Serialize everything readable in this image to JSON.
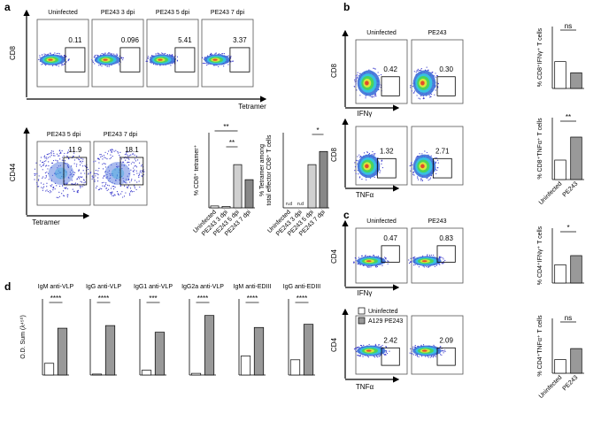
{
  "panel_labels": [
    "a",
    "b",
    "c",
    "d"
  ],
  "flow_panels": [
    {
      "y_axis": "CD8",
      "x_axis": "Tetramer",
      "plots": [
        {
          "title": "Uninfected",
          "gate": "0.11"
        },
        {
          "title": "PE243 3 dpi",
          "gate": "0.096"
        },
        {
          "title": "PE243 5 dpi",
          "gate": "5.41"
        },
        {
          "title": "PE243 7 dpi",
          "gate": "3.37"
        }
      ]
    },
    {
      "y_axis": "CD44",
      "x_axis": "Tetramer",
      "plots": [
        {
          "title": "PE243 5 dpi",
          "gate": "11.9"
        },
        {
          "title": "PE243 7 dpi",
          "gate": "18.1"
        }
      ]
    },
    {
      "y_axis": "CD8",
      "x_axis": "IFNγ",
      "plots": [
        {
          "title": "Uninfected",
          "gate": "0.42"
        },
        {
          "title": "PE243",
          "gate": "0.30"
        }
      ]
    },
    {
      "y_axis": "CD8",
      "x_axis": "TNFα",
      "plots": [
        {
          "gate": "1.32"
        },
        {
          "gate": "2.71"
        }
      ]
    },
    {
      "y_axis": "CD4",
      "x_axis": "IFNγ",
      "plots": [
        {
          "title": "Uninfected",
          "gate": "0.47"
        },
        {
          "title": "PE243",
          "gate": "0.83"
        }
      ]
    },
    {
      "y_axis": "CD4",
      "x_axis": "TNFα",
      "plots": [
        {
          "gate": "2.42"
        },
        {
          "gate": "2.09"
        }
      ]
    }
  ],
  "chart_data": [
    {
      "type": "bar",
      "ylabel": "% CD8⁺ tetramer⁺",
      "categories": [
        "Uninfected",
        "PE243 3 dpi",
        "PE243 5 dpi",
        "PE243 7 dpi"
      ],
      "values": [
        0.2,
        0.15,
        4.6,
        3.0
      ],
      "colors": [
        "#ffffff",
        "#ffffff",
        "#d0d0d0",
        "#888888"
      ],
      "ylim": [
        0,
        8
      ],
      "significance": [
        "**",
        "**"
      ]
    },
    {
      "type": "bar",
      "ylabel": [
        "% Tetramer among",
        "total effector CD8⁺ T cells"
      ],
      "categories": [
        "Uninfected",
        "PE243 3 dpi",
        "PE243 5 dpi",
        "PE243 7 dpi"
      ],
      "values": [
        null,
        null,
        11.5,
        15
      ],
      "value_labels": [
        "n.d",
        "n.d",
        null,
        null
      ],
      "colors": [
        "#ffffff",
        "#ffffff",
        "#d0d0d0",
        "#888888"
      ],
      "ylim": [
        0,
        20
      ],
      "significance": [
        "*"
      ]
    },
    {
      "type": "bar",
      "ylabel": "% CD8⁺IFNγ⁺ T cells",
      "values": [
        0.65,
        0.38
      ],
      "colors": [
        "#ffffff",
        "#999999"
      ],
      "ylim": [
        0,
        1.5
      ],
      "significance": [
        "ns"
      ]
    },
    {
      "type": "bar",
      "ylabel": "% CD8⁺TNFα⁺ T cells",
      "categories": [
        "Uninfected",
        "PE243"
      ],
      "values": [
        1.1,
        2.4
      ],
      "colors": [
        "#ffffff",
        "#999999"
      ],
      "ylim": [
        0,
        3.5
      ],
      "significance": [
        "**"
      ]
    },
    {
      "type": "bar",
      "ylabel": "% CD4⁺IFNγ⁺ T cells",
      "values": [
        0.5,
        0.75
      ],
      "colors": [
        "#ffffff",
        "#999999"
      ],
      "ylim": [
        0,
        1.5
      ],
      "significance": [
        "*"
      ]
    },
    {
      "type": "bar",
      "ylabel": "% CD4⁺TNFα⁺ T cells",
      "categories": [
        "Uninfected",
        "PE243"
      ],
      "values": [
        2.0,
        3.6
      ],
      "colors": [
        "#ffffff",
        "#999999"
      ],
      "ylim": [
        0,
        8
      ],
      "significance": [
        "ns"
      ]
    },
    {
      "type": "bar",
      "title": "IgM anti-VLP",
      "ylabel": "O.D. Sum (λ⁴⁵⁰)",
      "values": [
        0.2,
        0.8
      ],
      "colors": [
        "#ffffff",
        "#999999"
      ],
      "ylim": [
        0,
        1.3
      ],
      "significance": [
        "****"
      ]
    },
    {
      "type": "bar",
      "title": "IgG anti-VLP",
      "values": [
        0.05,
        2.6
      ],
      "colors": [
        "#ffffff",
        "#999999"
      ],
      "ylim": [
        0,
        4
      ],
      "significance": [
        "****"
      ]
    },
    {
      "type": "bar",
      "title": "IgG1 anti-VLP",
      "values": [
        0.05,
        0.45
      ],
      "colors": [
        "#ffffff",
        "#999999"
      ],
      "ylim": [
        0,
        0.8
      ],
      "significance": [
        "***"
      ]
    },
    {
      "type": "bar",
      "title": "IgG2a anti-VLP",
      "values": [
        0.1,
        3.6
      ],
      "colors": [
        "#ffffff",
        "#999999"
      ],
      "ylim": [
        0,
        4.6
      ],
      "significance": [
        "****"
      ]
    },
    {
      "type": "bar",
      "title": "IgM anti-EDIII",
      "values": [
        0.4,
        1.0
      ],
      "colors": [
        "#ffffff",
        "#999999"
      ],
      "ylim": [
        0,
        1.6
      ],
      "significance": [
        "****"
      ]
    },
    {
      "type": "bar",
      "title": "IgG anti-EDIII",
      "values": [
        0.15,
        0.5
      ],
      "colors": [
        "#ffffff",
        "#999999"
      ],
      "ylim": [
        0,
        0.75
      ],
      "significance": [
        "****"
      ]
    }
  ],
  "legend": {
    "series": [
      {
        "name": "Uninfected",
        "color": "#ffffff"
      },
      {
        "name": "A129 PE243",
        "color": "#999999"
      }
    ]
  }
}
